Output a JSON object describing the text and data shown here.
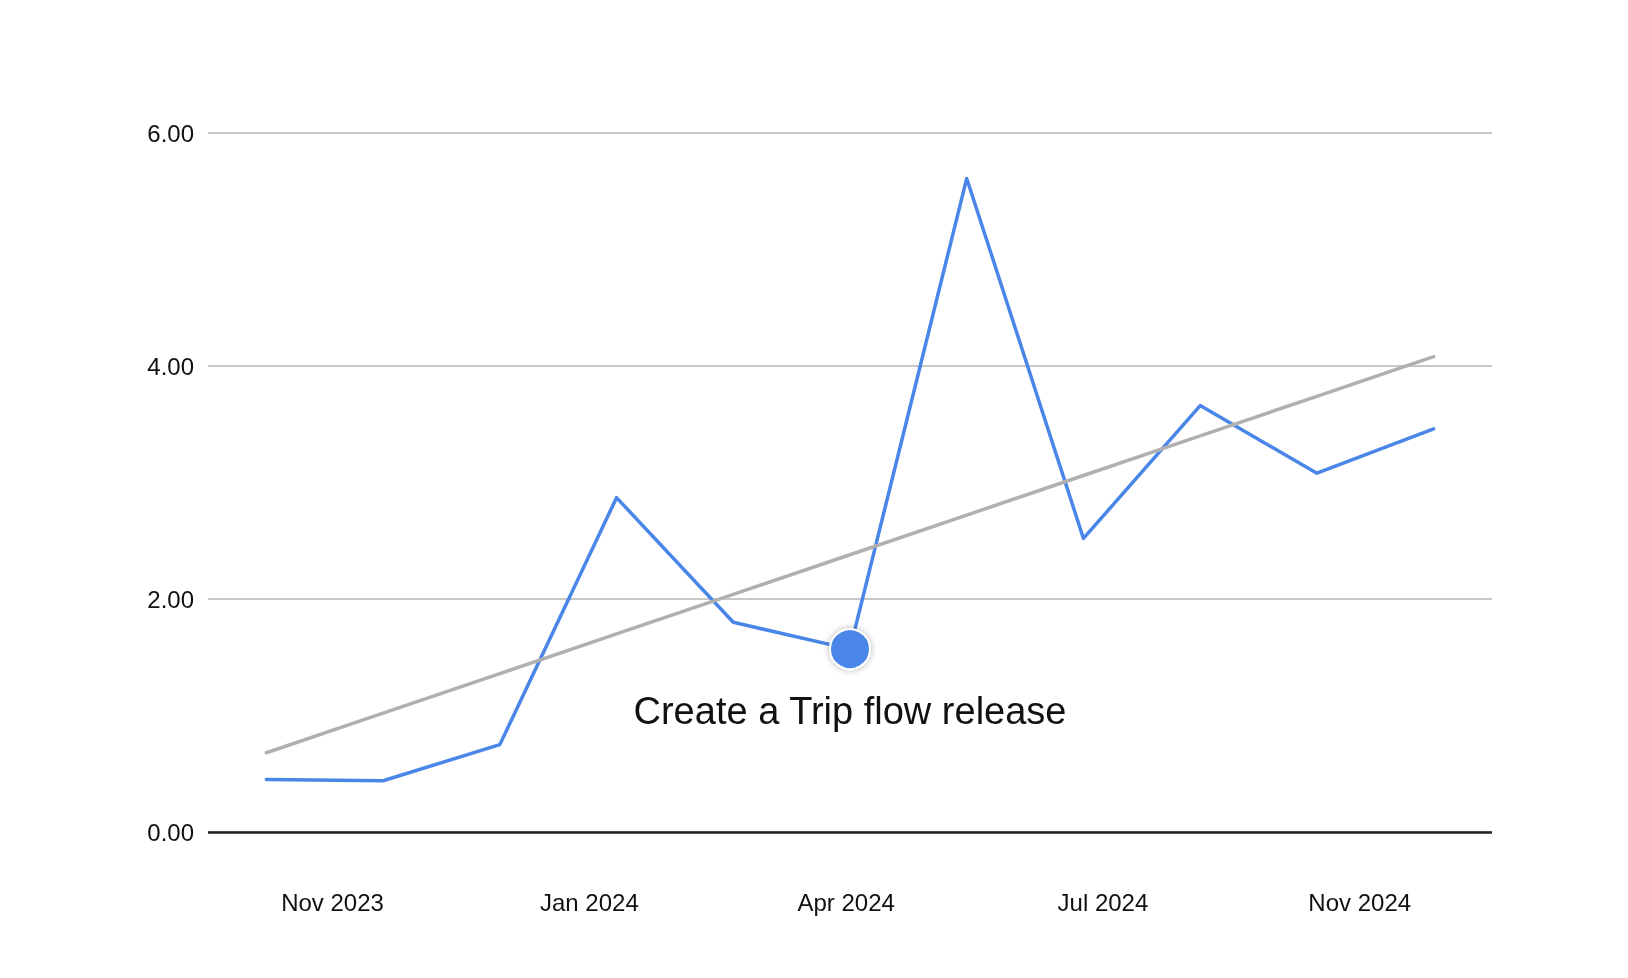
{
  "chart_data": {
    "type": "line",
    "categories": [
      null,
      null,
      null,
      null,
      null,
      null,
      null,
      null,
      null,
      null,
      null
    ],
    "ylim": [
      0,
      6
    ],
    "yticks": [
      {
        "value": 0,
        "label": "0.00"
      },
      {
        "value": 2,
        "label": "2.00"
      },
      {
        "value": 4,
        "label": "4.00"
      },
      {
        "value": 6,
        "label": "6.00"
      }
    ],
    "series": [
      {
        "color": "#4a86e8",
        "values": [
          0.45,
          0.44,
          0.75,
          2.87,
          1.8,
          1.57,
          5.61,
          2.52,
          3.66,
          3.08,
          3.46
        ]
      },
      {
        "color": "#b0b0b0",
        "values": [
          0.68,
          1.02,
          1.36,
          1.7,
          2.04,
          2.38,
          2.72,
          3.06,
          3.4,
          3.74,
          4.08
        ]
      }
    ],
    "annotations": [
      "Nov 2023",
      "Jan 2024",
      "Apr 2024",
      "Jul 2024",
      "Nov 2024",
      {
        "text": "Create a Trip flow release",
        "y": 1.57
      }
    ],
    "grid": "y",
    "marker": "none",
    "line_style": "solid"
  }
}
